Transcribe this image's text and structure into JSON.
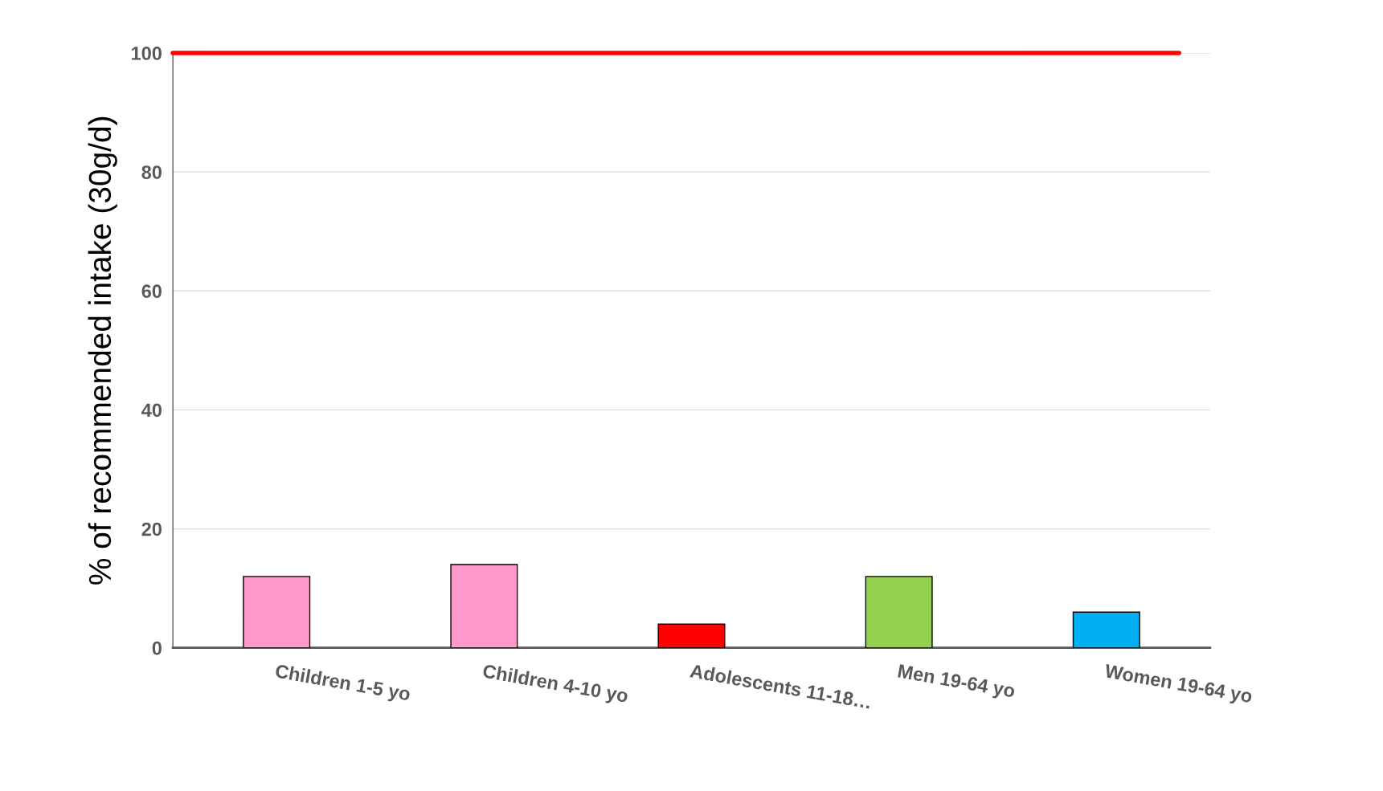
{
  "chart_data": {
    "type": "bar",
    "ylabel": "% of recommended intake (30g/d)",
    "categories": [
      "Children 1-5 yo",
      "Children 4-10 yo",
      "Adolescents 11-18…",
      "Men 19-64 yo",
      "Women 19-64 yo"
    ],
    "values": [
      12,
      14,
      4,
      12,
      6
    ],
    "colors": [
      "#ff99cc",
      "#ff99cc",
      "#ff0000",
      "#92d050",
      "#00b0f0"
    ],
    "ylim": [
      0,
      100
    ],
    "yticks": [
      0,
      20,
      40,
      60,
      80,
      100
    ],
    "grid": "y",
    "ref_lines": [
      {
        "axis": "y",
        "value": 100,
        "color": "#ff0000"
      }
    ]
  }
}
